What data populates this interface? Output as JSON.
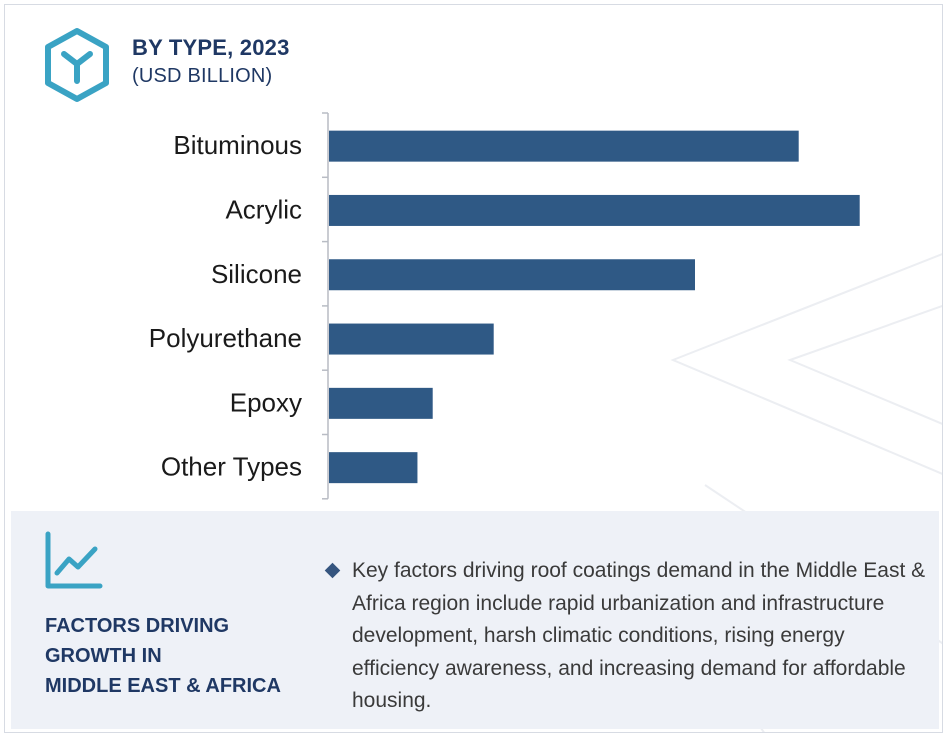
{
  "header": {
    "title": "BY TYPE, 2023",
    "subtitle": "(USD BILLION)",
    "icon": "hexagon-y-icon"
  },
  "chart_data": {
    "type": "bar",
    "orientation": "horizontal",
    "title": "BY TYPE, 2023",
    "subtitle": "(USD BILLION)",
    "categories": [
      "Bituminous",
      "Acrylic",
      "Silicone",
      "Polyurethane",
      "Epoxy",
      "Other Types"
    ],
    "values": [
      7.7,
      8.7,
      6.0,
      2.7,
      1.7,
      1.45
    ],
    "xlim": [
      0,
      10
    ],
    "value_axis_labels_shown": false,
    "grid": false,
    "bar_color": "#2f5985"
  },
  "footer": {
    "icon": "line-chart-icon",
    "title_lines": [
      "FACTORS DRIVING",
      "GROWTH IN",
      "MIDDLE EAST & AFRICA"
    ],
    "text": "Key factors driving roof coatings demand in the Middle East & Africa region include rapid urbanization and infrastructure development, harsh climatic conditions, rising energy efficiency awareness, and increasing demand for affordable housing."
  },
  "colors": {
    "accent": "#3aa3c4",
    "navy": "#1f3864",
    "bar": "#2f5985",
    "panel": "#eef1f7"
  }
}
